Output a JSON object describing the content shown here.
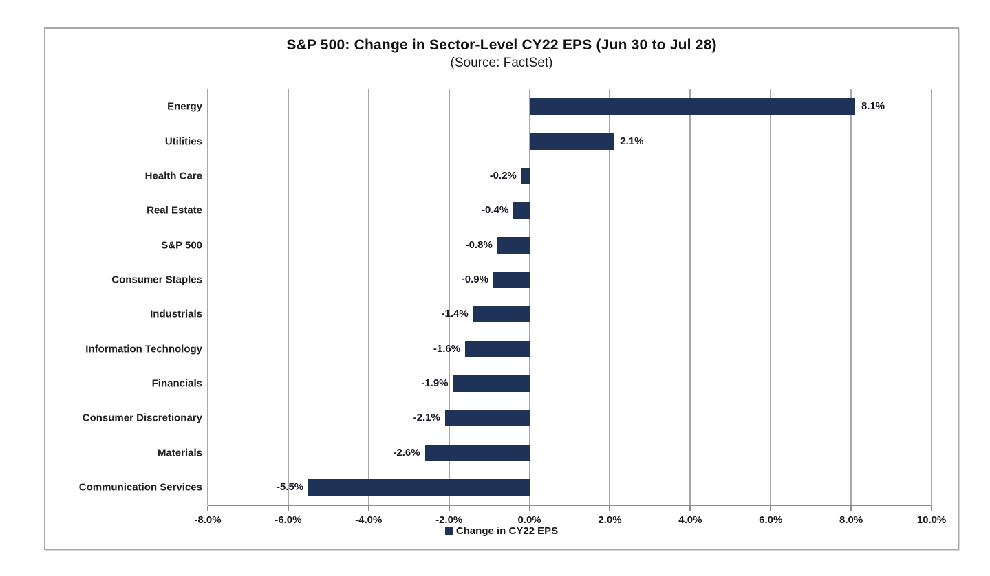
{
  "chart_data": {
    "type": "bar",
    "orientation": "horizontal",
    "title": "S&P 500: Change in Sector-Level CY22 EPS (Jun 30 to Jul 28)",
    "subtitle": "(Source: FactSet)",
    "categories": [
      "Energy",
      "Utilities",
      "Health Care",
      "Real Estate",
      "S&P 500",
      "Consumer Staples",
      "Industrials",
      "Information Technology",
      "Financials",
      "Consumer Discretionary",
      "Materials",
      "Communication Services"
    ],
    "values": [
      8.1,
      2.1,
      -0.2,
      -0.4,
      -0.8,
      -0.9,
      -1.4,
      -1.6,
      -1.9,
      -2.1,
      -2.6,
      -5.5
    ],
    "data_labels": [
      "8.1%",
      "2.1%",
      "-0.2%",
      "-0.4%",
      "-0.8%",
      "-0.9%",
      "-1.4%",
      "-1.6%",
      "-1.9%",
      "-2.1%",
      "-2.6%",
      "-5.5%"
    ],
    "xlabel": "",
    "ylabel": "",
    "xlim": [
      -8,
      10
    ],
    "x_tick_values": [
      -8,
      -6,
      -4,
      -2,
      0,
      2,
      4,
      6,
      8,
      10
    ],
    "x_tick_labels": [
      "-8.0%",
      "-6.0%",
      "-4.0%",
      "-2.0%",
      "0.0%",
      "2.0%",
      "4.0%",
      "6.0%",
      "8.0%",
      "10.0%"
    ],
    "grid": true,
    "legend_position": "bottom",
    "legend_label": "Change in CY22 EPS",
    "bar_color": "#1F3257",
    "gridline_color": "#a8a8a8",
    "axis_line_color": "#8c8c8c"
  }
}
